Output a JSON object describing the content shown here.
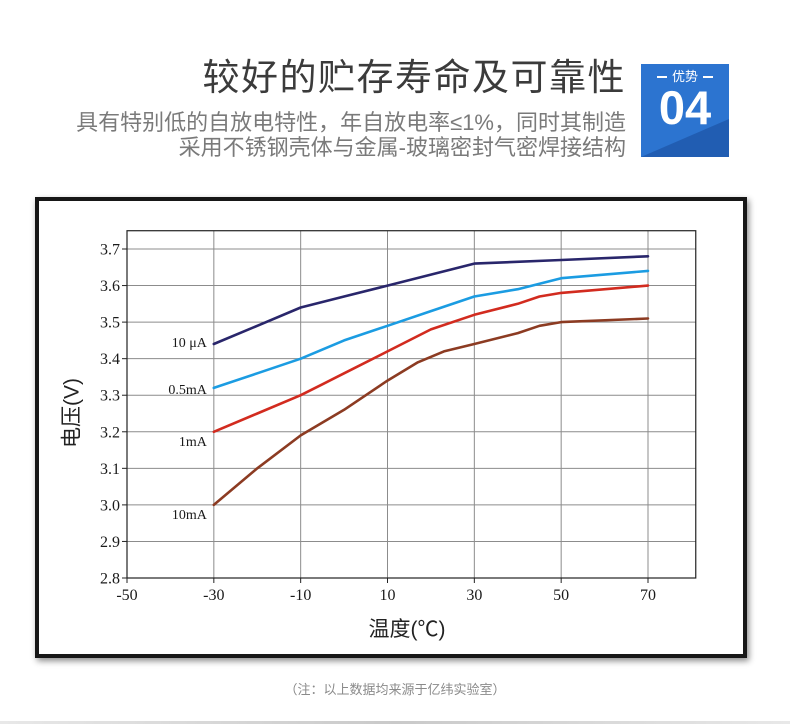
{
  "header": {
    "title": "较好的贮存寿命及可靠性",
    "subtitle_lines": [
      "具有特别低的自放电特性，年自放电率≤1%，同时其制造",
      "采用不锈钢壳体与金属-玻璃密封气密焊接结构"
    ]
  },
  "badge": {
    "label": "优势",
    "number": "04",
    "color": "#2c74d0"
  },
  "chart_data": {
    "type": "line",
    "xlabel": "温度(℃)",
    "ylabel": "电压(V)",
    "xlim": [
      -50,
      81
    ],
    "ylim": [
      2.8,
      3.75
    ],
    "xticks": [
      "-50",
      "-30",
      "-10",
      "10",
      "30",
      "50",
      "70"
    ],
    "yticks": [
      "2.8",
      "2.9",
      "3.0",
      "3.1",
      "3.2",
      "3.3",
      "3.4",
      "3.5",
      "3.6",
      "3.7"
    ],
    "grid": true,
    "legend": "inline-left",
    "series": [
      {
        "name": "10 μA",
        "color": "#29266b",
        "x": [
          -30,
          -20,
          -10,
          0,
          10,
          20,
          30,
          50,
          70
        ],
        "y": [
          3.44,
          3.49,
          3.54,
          3.57,
          3.6,
          3.63,
          3.66,
          3.67,
          3.68
        ]
      },
      {
        "name": "0.5mA",
        "color": "#1b9ce2",
        "x": [
          -30,
          -20,
          -10,
          0,
          10,
          20,
          30,
          40,
          50,
          70
        ],
        "y": [
          3.32,
          3.36,
          3.4,
          3.45,
          3.49,
          3.53,
          3.57,
          3.59,
          3.62,
          3.64
        ]
      },
      {
        "name": "1mA",
        "color": "#d22b1f",
        "x": [
          -30,
          -20,
          -10,
          -5,
          0,
          10,
          20,
          30,
          40,
          45,
          50,
          70
        ],
        "y": [
          3.2,
          3.25,
          3.3,
          3.33,
          3.36,
          3.42,
          3.48,
          3.52,
          3.55,
          3.57,
          3.58,
          3.6
        ]
      },
      {
        "name": "10mA",
        "color": "#8c3b22",
        "x": [
          -30,
          -20,
          -10,
          0,
          10,
          17,
          23,
          30,
          40,
          45,
          50,
          70
        ],
        "y": [
          3.0,
          3.1,
          3.19,
          3.26,
          3.34,
          3.39,
          3.42,
          3.44,
          3.47,
          3.49,
          3.5,
          3.51
        ]
      }
    ]
  },
  "footer": {
    "note": "（注：以上数据均来源于亿纬实验室）"
  }
}
